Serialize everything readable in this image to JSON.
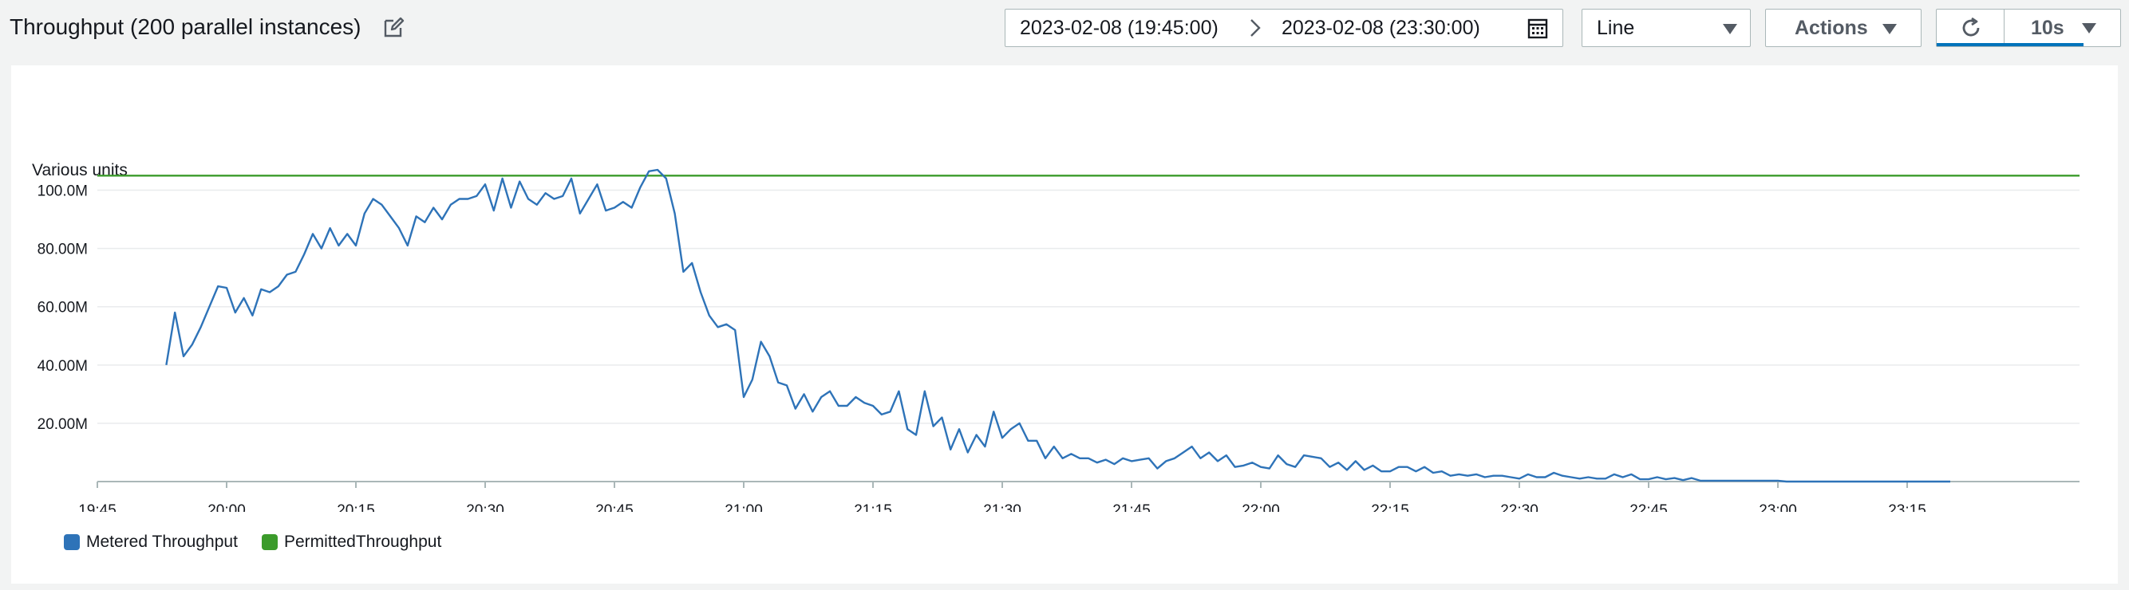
{
  "header": {
    "title": "Throughput (200 parallel instances)",
    "date_start": "2023-02-08 (19:45:00)",
    "date_end": "2023-02-08 (23:30:00)",
    "chart_type_selected": "Line",
    "actions_label": "Actions",
    "refresh_interval": "10s",
    "icons": [
      "edit-icon",
      "arrow-right-icon",
      "calendar-icon",
      "chevron-down-icon",
      "refresh-icon"
    ]
  },
  "colors": {
    "series_metered": "#2e73b8",
    "series_permitted": "#3b9b2b",
    "accent": "#0073bb"
  },
  "chart_data": {
    "type": "line",
    "ylabel": "Various units",
    "y_ticks": [
      "100.0M",
      "80.00M",
      "60.00M",
      "40.00M",
      "20.00M"
    ],
    "x_ticks": [
      "19:45",
      "20:00",
      "20:15",
      "20:30",
      "20:45",
      "21:00",
      "21:15",
      "21:30",
      "21:45",
      "22:00",
      "22:15",
      "22:30",
      "22:45",
      "23:00",
      "23:15"
    ],
    "ylim": [
      0,
      110000000
    ],
    "grid": true,
    "legend_position": "bottom-left",
    "series": [
      {
        "name": "Metered Throughput",
        "color": "#2e73b8",
        "points": [
          [
            "19:53",
            40000000
          ],
          [
            "19:54",
            58000000
          ],
          [
            "19:55",
            43000000
          ],
          [
            "19:56",
            47000000
          ],
          [
            "19:57",
            53000000
          ],
          [
            "19:58",
            60000000
          ],
          [
            "19:59",
            67000000
          ],
          [
            "20:00",
            66500000
          ],
          [
            "20:01",
            58000000
          ],
          [
            "20:02",
            63000000
          ],
          [
            "20:03",
            57000000
          ],
          [
            "20:04",
            66000000
          ],
          [
            "20:05",
            65000000
          ],
          [
            "20:06",
            67000000
          ],
          [
            "20:07",
            71000000
          ],
          [
            "20:08",
            72000000
          ],
          [
            "20:09",
            78000000
          ],
          [
            "20:10",
            85000000
          ],
          [
            "20:11",
            80000000
          ],
          [
            "20:12",
            87000000
          ],
          [
            "20:13",
            81000000
          ],
          [
            "20:14",
            85000000
          ],
          [
            "20:15",
            81000000
          ],
          [
            "20:16",
            92000000
          ],
          [
            "20:17",
            97000000
          ],
          [
            "20:18",
            95000000
          ],
          [
            "20:19",
            91000000
          ],
          [
            "20:20",
            87000000
          ],
          [
            "20:21",
            81000000
          ],
          [
            "20:22",
            91000000
          ],
          [
            "20:23",
            89000000
          ],
          [
            "20:24",
            94000000
          ],
          [
            "20:25",
            90000000
          ],
          [
            "20:26",
            95000000
          ],
          [
            "20:27",
            97000000
          ],
          [
            "20:28",
            97000000
          ],
          [
            "20:29",
            98000000
          ],
          [
            "20:30",
            102000000
          ],
          [
            "20:31",
            93000000
          ],
          [
            "20:32",
            104000000
          ],
          [
            "20:33",
            94000000
          ],
          [
            "20:34",
            103000000
          ],
          [
            "20:35",
            97000000
          ],
          [
            "20:36",
            95000000
          ],
          [
            "20:37",
            99000000
          ],
          [
            "20:38",
            97000000
          ],
          [
            "20:39",
            98000000
          ],
          [
            "20:40",
            104000000
          ],
          [
            "20:41",
            92000000
          ],
          [
            "20:42",
            97000000
          ],
          [
            "20:43",
            102000000
          ],
          [
            "20:44",
            93000000
          ],
          [
            "20:45",
            94000000
          ],
          [
            "20:46",
            96000000
          ],
          [
            "20:47",
            94000000
          ],
          [
            "20:48",
            101000000
          ],
          [
            "20:49",
            106500000
          ],
          [
            "20:50",
            107000000
          ],
          [
            "20:51",
            104000000
          ],
          [
            "20:52",
            92000000
          ],
          [
            "20:53",
            72000000
          ],
          [
            "20:54",
            75000000
          ],
          [
            "20:55",
            65000000
          ],
          [
            "20:56",
            57000000
          ],
          [
            "20:57",
            53000000
          ],
          [
            "20:58",
            54000000
          ],
          [
            "20:59",
            52000000
          ],
          [
            "21:00",
            29000000
          ],
          [
            "21:01",
            35000000
          ],
          [
            "21:02",
            48000000
          ],
          [
            "21:03",
            43000000
          ],
          [
            "21:04",
            34000000
          ],
          [
            "21:05",
            33000000
          ],
          [
            "21:06",
            25000000
          ],
          [
            "21:07",
            30000000
          ],
          [
            "21:08",
            24000000
          ],
          [
            "21:09",
            29000000
          ],
          [
            "21:10",
            31000000
          ],
          [
            "21:11",
            26000000
          ],
          [
            "21:12",
            26000000
          ],
          [
            "21:13",
            29000000
          ],
          [
            "21:14",
            27000000
          ],
          [
            "21:15",
            26000000
          ],
          [
            "21:16",
            23000000
          ],
          [
            "21:17",
            24000000
          ],
          [
            "21:18",
            31000000
          ],
          [
            "21:19",
            18000000
          ],
          [
            "21:20",
            16000000
          ],
          [
            "21:21",
            31000000
          ],
          [
            "21:22",
            19000000
          ],
          [
            "21:23",
            22000000
          ],
          [
            "21:24",
            11000000
          ],
          [
            "21:25",
            18000000
          ],
          [
            "21:26",
            10000000
          ],
          [
            "21:27",
            16000000
          ],
          [
            "21:28",
            12000000
          ],
          [
            "21:29",
            24000000
          ],
          [
            "21:30",
            15000000
          ],
          [
            "21:31",
            18000000
          ],
          [
            "21:32",
            20000000
          ],
          [
            "21:33",
            14000000
          ],
          [
            "21:34",
            14000000
          ],
          [
            "21:35",
            8000000
          ],
          [
            "21:36",
            12000000
          ],
          [
            "21:37",
            8000000
          ],
          [
            "21:38",
            9500000
          ],
          [
            "21:39",
            8000000
          ],
          [
            "21:40",
            8000000
          ],
          [
            "21:41",
            6500000
          ],
          [
            "21:42",
            7500000
          ],
          [
            "21:43",
            6000000
          ],
          [
            "21:44",
            8000000
          ],
          [
            "21:45",
            7000000
          ],
          [
            "21:46",
            7500000
          ],
          [
            "21:47",
            8000000
          ],
          [
            "21:48",
            4500000
          ],
          [
            "21:49",
            7000000
          ],
          [
            "21:50",
            8000000
          ],
          [
            "21:51",
            10000000
          ],
          [
            "21:52",
            12000000
          ],
          [
            "21:53",
            8000000
          ],
          [
            "21:54",
            10000000
          ],
          [
            "21:55",
            7000000
          ],
          [
            "21:56",
            9000000
          ],
          [
            "21:57",
            5000000
          ],
          [
            "21:58",
            5500000
          ],
          [
            "21:59",
            6500000
          ],
          [
            "22:00",
            5000000
          ],
          [
            "22:01",
            4500000
          ],
          [
            "22:02",
            9000000
          ],
          [
            "22:03",
            6000000
          ],
          [
            "22:04",
            5000000
          ],
          [
            "22:05",
            9000000
          ],
          [
            "22:06",
            8500000
          ],
          [
            "22:07",
            8000000
          ],
          [
            "22:08",
            5000000
          ],
          [
            "22:09",
            6500000
          ],
          [
            "22:10",
            4000000
          ],
          [
            "22:11",
            7000000
          ],
          [
            "22:12",
            4000000
          ],
          [
            "22:13",
            5500000
          ],
          [
            "22:14",
            3500000
          ],
          [
            "22:15",
            3500000
          ],
          [
            "22:16",
            5000000
          ],
          [
            "22:17",
            5000000
          ],
          [
            "22:18",
            3500000
          ],
          [
            "22:19",
            5000000
          ],
          [
            "22:20",
            3000000
          ],
          [
            "22:21",
            3500000
          ],
          [
            "22:22",
            2000000
          ],
          [
            "22:23",
            2500000
          ],
          [
            "22:24",
            2000000
          ],
          [
            "22:25",
            2500000
          ],
          [
            "22:26",
            1500000
          ],
          [
            "22:27",
            2000000
          ],
          [
            "22:28",
            2000000
          ],
          [
            "22:29",
            1500000
          ],
          [
            "22:30",
            1000000
          ],
          [
            "22:31",
            2500000
          ],
          [
            "22:32",
            1500000
          ],
          [
            "22:33",
            1500000
          ],
          [
            "22:34",
            3000000
          ],
          [
            "22:35",
            2000000
          ],
          [
            "22:36",
            1500000
          ],
          [
            "22:37",
            1000000
          ],
          [
            "22:38",
            1500000
          ],
          [
            "22:39",
            1000000
          ],
          [
            "22:40",
            1000000
          ],
          [
            "22:41",
            2500000
          ],
          [
            "22:42",
            1500000
          ],
          [
            "22:43",
            2500000
          ],
          [
            "22:44",
            800000
          ],
          [
            "22:45",
            800000
          ],
          [
            "22:46",
            1500000
          ],
          [
            "22:47",
            800000
          ],
          [
            "22:48",
            1200000
          ],
          [
            "22:49",
            500000
          ],
          [
            "22:50",
            1200000
          ],
          [
            "22:51",
            300000
          ],
          [
            "22:55",
            300000
          ],
          [
            "23:00",
            300000
          ],
          [
            "23:01",
            0
          ],
          [
            "23:05",
            0
          ],
          [
            "23:10",
            0
          ],
          [
            "23:15",
            0
          ],
          [
            "23:20",
            0
          ]
        ]
      },
      {
        "name": "PermittedThroughput",
        "color": "#3b9b2b",
        "points": [
          [
            "19:45",
            105000000
          ],
          [
            "23:35",
            105000000
          ]
        ]
      }
    ]
  }
}
